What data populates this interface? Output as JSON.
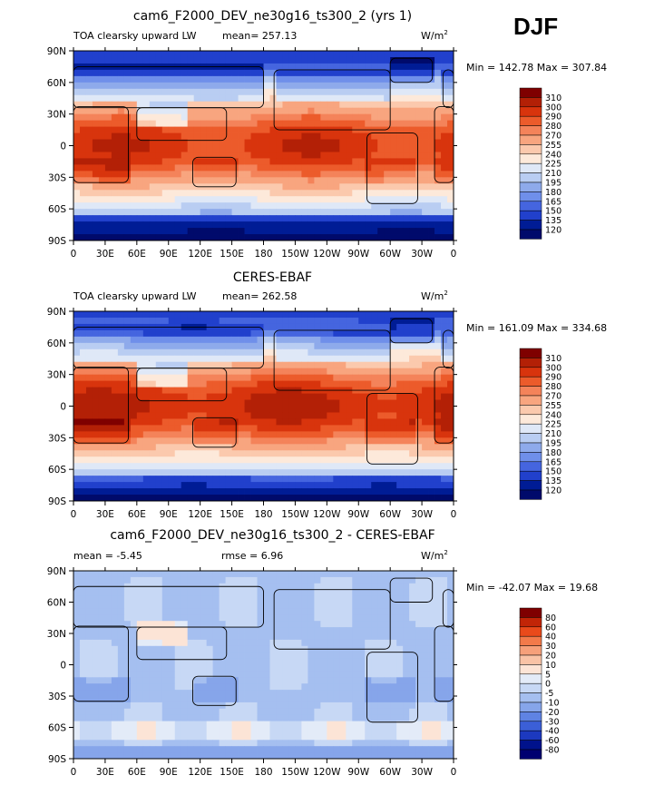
{
  "season": "DJF",
  "units_main": "W/m",
  "units_exp": "2",
  "chart_data": [
    {
      "type": "heatmap",
      "title": "cam6_F2000_DEV_ne30g16_ts300_2 (yrs 1)",
      "subtitle": "TOA clearsky upward LW",
      "stat_text": "mean= 257.13",
      "minmax_text": "Min = 142.78 Max = 307.84",
      "min": 142.78,
      "max": 307.84,
      "mean": 257.13,
      "field": "absolute",
      "levels": [
        "310",
        "300",
        "290",
        "280",
        "270",
        "255",
        "240",
        "225",
        "210",
        "195",
        "180",
        "165",
        "150",
        "135",
        "120"
      ],
      "x_ticks": [
        "0",
        "30E",
        "60E",
        "90E",
        "120E",
        "150E",
        "180",
        "150W",
        "120W",
        "90W",
        "60W",
        "30W",
        "0"
      ],
      "y_ticks": [
        "90N",
        "60N",
        "30N",
        "0",
        "30S",
        "60S",
        "90S"
      ]
    },
    {
      "type": "heatmap",
      "title": "CERES-EBAF",
      "subtitle": "TOA clearsky upward LW",
      "stat_text": "mean= 262.58",
      "minmax_text": "Min = 161.09 Max = 334.68",
      "min": 161.09,
      "max": 334.68,
      "mean": 262.58,
      "field": "absolute",
      "levels": [
        "310",
        "300",
        "290",
        "280",
        "270",
        "255",
        "240",
        "225",
        "210",
        "195",
        "180",
        "165",
        "150",
        "135",
        "120"
      ],
      "x_ticks": [
        "0",
        "30E",
        "60E",
        "90E",
        "120E",
        "150E",
        "180",
        "150W",
        "120W",
        "90W",
        "60W",
        "30W",
        "0"
      ],
      "y_ticks": [
        "90N",
        "60N",
        "30N",
        "0",
        "30S",
        "60S",
        "90S"
      ]
    },
    {
      "type": "heatmap",
      "title": "cam6_F2000_DEV_ne30g16_ts300_2 - CERES-EBAF",
      "subtitle": "mean =  -5.45",
      "stat_text": "rmse =   6.96",
      "minmax_text": "Min = -42.07 Max =  19.68",
      "min": -42.07,
      "max": 19.68,
      "mean": -5.45,
      "rmse": 6.96,
      "field": "difference",
      "levels": [
        "80",
        "60",
        "40",
        "30",
        "20",
        "10",
        "5",
        "0",
        "-5",
        "-10",
        "-20",
        "-30",
        "-40",
        "-60",
        "-80"
      ],
      "x_ticks": [
        "0",
        "30E",
        "60E",
        "90E",
        "120E",
        "150E",
        "180",
        "150W",
        "120W",
        "90W",
        "60W",
        "30W",
        "0"
      ],
      "y_ticks": [
        "90N",
        "60N",
        "30N",
        "0",
        "30S",
        "60S",
        "90S"
      ]
    }
  ]
}
